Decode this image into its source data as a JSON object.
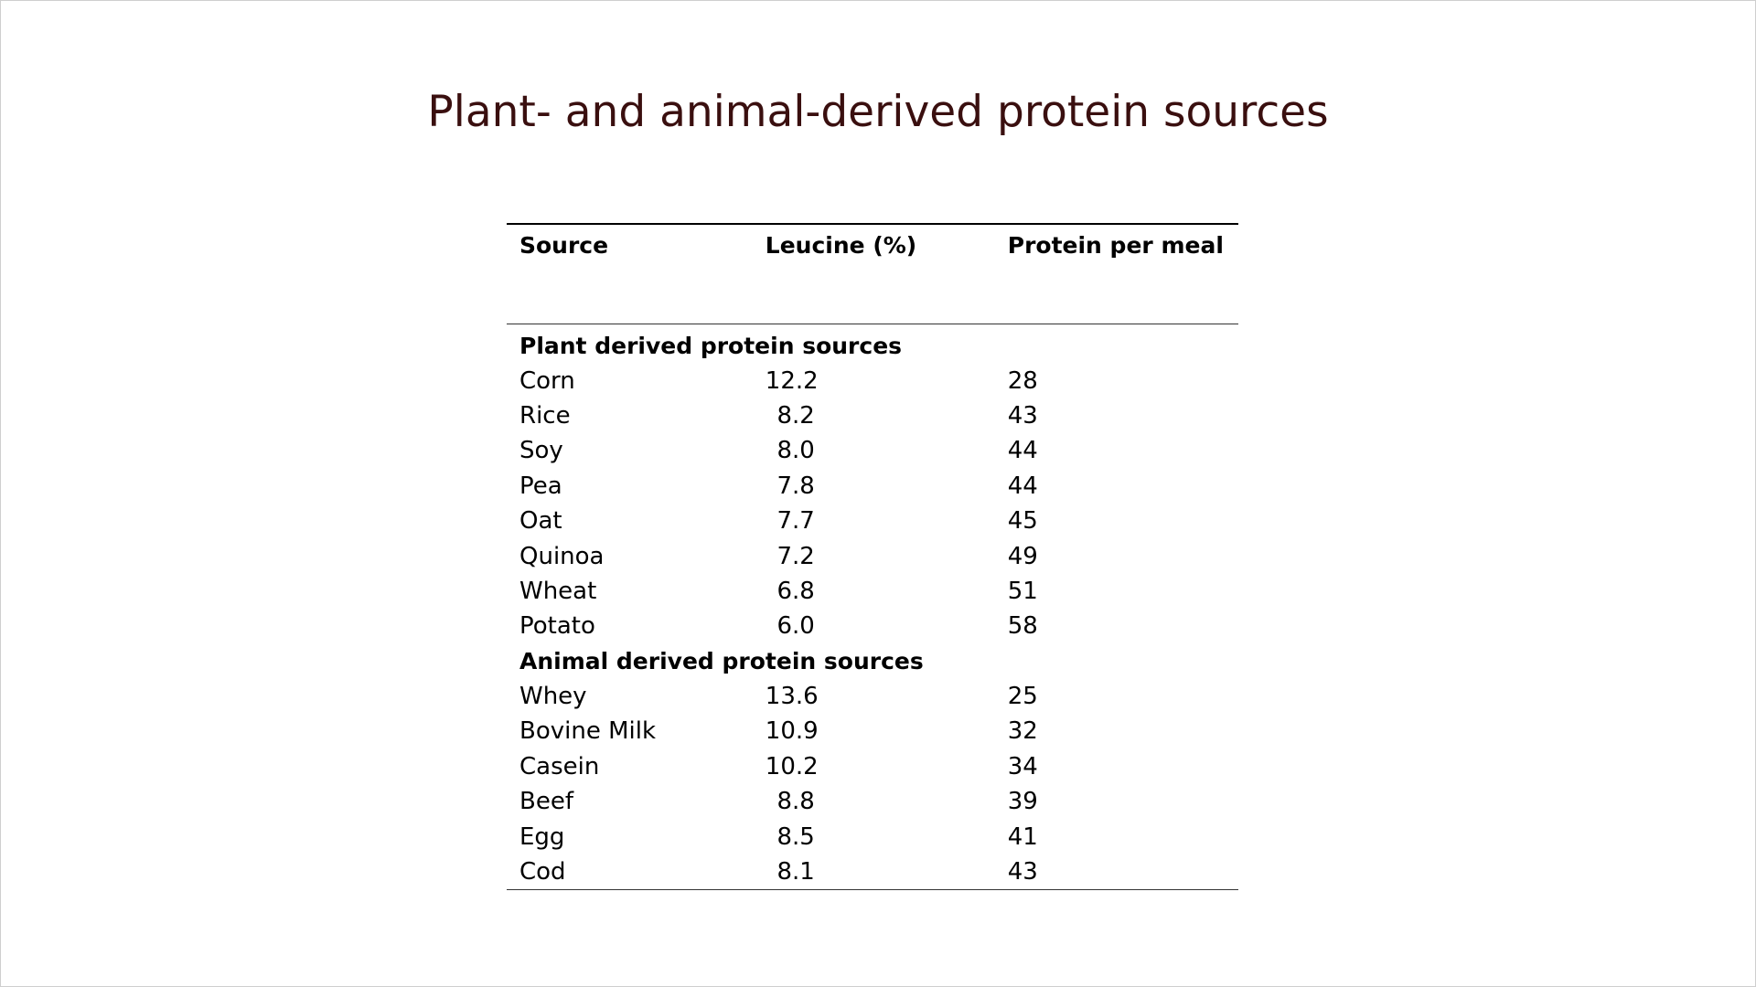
{
  "slide": {
    "title": "Plant- and animal-derived protein sources"
  },
  "table": {
    "headers": {
      "source": "Source",
      "leucine": "Leucine (%)",
      "protein": "Protein per meal"
    },
    "sections": [
      {
        "label": "Plant derived protein sources",
        "rows": [
          {
            "source": "Corn",
            "leucine": "12.2",
            "protein": "28"
          },
          {
            "source": "Rice",
            "leucine": "8.2",
            "protein": "43"
          },
          {
            "source": "Soy",
            "leucine": "8.0",
            "protein": "44"
          },
          {
            "source": "Pea",
            "leucine": "7.8",
            "protein": "44"
          },
          {
            "source": "Oat",
            "leucine": "7.7",
            "protein": "45"
          },
          {
            "source": "Quinoa",
            "leucine": "7.2",
            "protein": "49"
          },
          {
            "source": "Wheat",
            "leucine": "6.8",
            "protein": "51"
          },
          {
            "source": "Potato",
            "leucine": "6.0",
            "protein": "58"
          }
        ]
      },
      {
        "label": "Animal derived protein sources",
        "rows": [
          {
            "source": "Whey",
            "leucine": "13.6",
            "protein": "25"
          },
          {
            "source": "Bovine Milk",
            "leucine": "10.9",
            "protein": "32"
          },
          {
            "source": "Casein",
            "leucine": "10.2",
            "protein": "34"
          },
          {
            "source": "Beef",
            "leucine": "8.8",
            "protein": "39"
          },
          {
            "source": "Egg",
            "leucine": "8.5",
            "protein": "41"
          },
          {
            "source": "Cod",
            "leucine": "8.1",
            "protein": "43"
          }
        ]
      }
    ]
  }
}
